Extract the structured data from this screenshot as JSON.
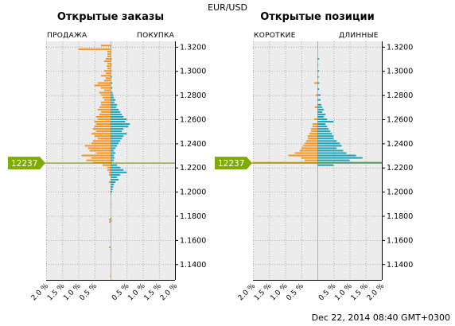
{
  "symbol": "EUR/USD",
  "timestamp": "Dec 22, 2014 08:40 GMT+0300",
  "colors": {
    "orange": "#f7941d",
    "teal": "#1ba3b7",
    "price_flag": "#7faa0a",
    "price_line": "#8a9a10",
    "plot_bg": "#ececec",
    "grid": "#999999"
  },
  "current_price_label": "12237",
  "current_price": 1.2237,
  "axis_tick_labels": [
    "1.3200",
    "1.3000",
    "1.2800",
    "1.2600",
    "1.2400",
    "1.2200",
    "1.2000",
    "1.1800",
    "1.1600",
    "1.1400"
  ],
  "x_tick_labels": [
    "2.0 %",
    "1.5 %",
    "1.0 %",
    "0.5 %",
    "0.5 %",
    "1.0 %",
    "1.5 %",
    "2.0 %"
  ],
  "panels": [
    {
      "title": "Открытые заказы",
      "left_label": "ПРОДАЖА",
      "right_label": "ПОКУПКА"
    },
    {
      "title": "Открытые позиции",
      "left_label": "КОРОТКИЕ",
      "right_label": "ДЛИННЫЕ"
    }
  ],
  "chart_data": [
    {
      "type": "bar",
      "title": "Открытые заказы",
      "orientation": "horizontal",
      "y_axis": {
        "ylim": [
          1.127,
          1.3245
        ],
        "ticks": [
          1.32,
          1.3,
          1.28,
          1.26,
          1.24,
          1.22,
          1.2,
          1.18,
          1.16,
          1.14
        ]
      },
      "x_axis": {
        "xlim": [
          -2.0,
          2.0
        ],
        "unit": "%"
      },
      "grid": true,
      "series": [
        {
          "name": "ПРОДАЖА",
          "color": "#f7941d",
          "points": [
            [
              1.321,
              0.3
            ],
            [
              1.318,
              1.0
            ],
            [
              1.316,
              0.1
            ],
            [
              1.314,
              0.1
            ],
            [
              1.312,
              0.1
            ],
            [
              1.31,
              0.15
            ],
            [
              1.308,
              0.2
            ],
            [
              1.306,
              0.1
            ],
            [
              1.304,
              0.12
            ],
            [
              1.302,
              0.1
            ],
            [
              1.3,
              0.2
            ],
            [
              1.298,
              0.15
            ],
            [
              1.296,
              0.3
            ],
            [
              1.294,
              0.15
            ],
            [
              1.292,
              0.2
            ],
            [
              1.29,
              0.4
            ],
            [
              1.288,
              0.5
            ],
            [
              1.286,
              0.3
            ],
            [
              1.284,
              0.2
            ],
            [
              1.282,
              0.35
            ],
            [
              1.28,
              0.3
            ],
            [
              1.278,
              0.25
            ],
            [
              1.276,
              0.2
            ],
            [
              1.274,
              0.3
            ],
            [
              1.272,
              0.3
            ],
            [
              1.27,
              0.35
            ],
            [
              1.268,
              0.4
            ],
            [
              1.266,
              0.3
            ],
            [
              1.264,
              0.35
            ],
            [
              1.262,
              0.45
            ],
            [
              1.26,
              0.4
            ],
            [
              1.258,
              0.5
            ],
            [
              1.256,
              0.45
            ],
            [
              1.254,
              0.5
            ],
            [
              1.252,
              0.55
            ],
            [
              1.25,
              0.45
            ],
            [
              1.248,
              0.6
            ],
            [
              1.246,
              0.5
            ],
            [
              1.244,
              0.4
            ],
            [
              1.242,
              0.55
            ],
            [
              1.24,
              0.6
            ],
            [
              1.238,
              0.8
            ],
            [
              1.236,
              0.7
            ],
            [
              1.234,
              0.65
            ],
            [
              1.232,
              0.45
            ],
            [
              1.23,
              0.9
            ],
            [
              1.228,
              0.6
            ],
            [
              1.226,
              0.75
            ],
            [
              1.224,
              0.55
            ],
            [
              1.222,
              0.25
            ],
            [
              1.22,
              0.1
            ],
            [
              1.218,
              0.1
            ],
            [
              1.216,
              0.05
            ],
            [
              1.214,
              0.05
            ],
            [
              1.208,
              0.05
            ],
            [
              1.2,
              0.02
            ],
            [
              1.177,
              0.05
            ],
            [
              1.175,
              0.05
            ],
            [
              1.154,
              0.05
            ],
            [
              1.13,
              0.02
            ]
          ]
        },
        {
          "name": "ПОКУПКА",
          "color": "#1ba3b7",
          "points": [
            [
              1.32,
              0.02
            ],
            [
              1.315,
              0.02
            ],
            [
              1.31,
              0.03
            ],
            [
              1.305,
              0.03
            ],
            [
              1.3,
              0.03
            ],
            [
              1.295,
              0.04
            ],
            [
              1.29,
              0.05
            ],
            [
              1.286,
              0.05
            ],
            [
              1.282,
              0.06
            ],
            [
              1.28,
              0.08
            ],
            [
              1.278,
              0.1
            ],
            [
              1.276,
              0.15
            ],
            [
              1.274,
              0.12
            ],
            [
              1.272,
              0.2
            ],
            [
              1.27,
              0.18
            ],
            [
              1.268,
              0.25
            ],
            [
              1.266,
              0.3
            ],
            [
              1.264,
              0.35
            ],
            [
              1.262,
              0.4
            ],
            [
              1.26,
              0.5
            ],
            [
              1.258,
              0.45
            ],
            [
              1.256,
              0.6
            ],
            [
              1.254,
              0.55
            ],
            [
              1.252,
              0.4
            ],
            [
              1.25,
              0.35
            ],
            [
              1.248,
              0.5
            ],
            [
              1.246,
              0.4
            ],
            [
              1.244,
              0.35
            ],
            [
              1.242,
              0.3
            ],
            [
              1.24,
              0.25
            ],
            [
              1.238,
              0.2
            ],
            [
              1.236,
              0.15
            ],
            [
              1.234,
              0.1
            ],
            [
              1.232,
              0.15
            ],
            [
              1.23,
              0.1
            ],
            [
              1.228,
              0.12
            ],
            [
              1.226,
              0.1
            ],
            [
              1.224,
              0.05
            ],
            [
              1.222,
              0.2
            ],
            [
              1.22,
              0.3
            ],
            [
              1.218,
              0.4
            ],
            [
              1.216,
              0.5
            ],
            [
              1.214,
              0.3
            ],
            [
              1.212,
              0.2
            ],
            [
              1.21,
              0.25
            ],
            [
              1.208,
              0.15
            ],
            [
              1.206,
              0.1
            ],
            [
              1.204,
              0.08
            ],
            [
              1.202,
              0.06
            ],
            [
              1.2,
              0.05
            ],
            [
              1.198,
              0.02
            ],
            [
              1.19,
              0.02
            ],
            [
              1.178,
              0.03
            ],
            [
              1.176,
              0.03
            ],
            [
              1.152,
              0.02
            ]
          ]
        }
      ]
    },
    {
      "type": "bar",
      "title": "Открытые позиции",
      "orientation": "horizontal",
      "y_axis": {
        "ylim": [
          1.127,
          1.3245
        ],
        "ticks": [
          1.32,
          1.3,
          1.28,
          1.26,
          1.24,
          1.22,
          1.2,
          1.18,
          1.16,
          1.14
        ]
      },
      "x_axis": {
        "xlim": [
          -2.0,
          2.0
        ],
        "unit": "%"
      },
      "grid": true,
      "series": [
        {
          "name": "КОРОТКИЕ",
          "color": "#f7941d",
          "points": [
            [
              1.29,
              0.1
            ],
            [
              1.28,
              0.05
            ],
            [
              1.27,
              0.08
            ],
            [
              1.26,
              0.1
            ],
            [
              1.256,
              0.15
            ],
            [
              1.254,
              0.15
            ],
            [
              1.252,
              0.2
            ],
            [
              1.25,
              0.2
            ],
            [
              1.248,
              0.25
            ],
            [
              1.246,
              0.3
            ],
            [
              1.244,
              0.3
            ],
            [
              1.242,
              0.35
            ],
            [
              1.24,
              0.4
            ],
            [
              1.238,
              0.45
            ],
            [
              1.236,
              0.5
            ],
            [
              1.234,
              0.55
            ],
            [
              1.232,
              0.7
            ],
            [
              1.23,
              0.9
            ],
            [
              1.228,
              0.5
            ],
            [
              1.226,
              0.4
            ],
            [
              1.224,
              2.0
            ]
          ]
        },
        {
          "name": "ДЛИННЫЕ",
          "color": "#1ba3b7",
          "points": [
            [
              1.32,
              0.02
            ],
            [
              1.31,
              0.05
            ],
            [
              1.305,
              0.03
            ],
            [
              1.3,
              0.05
            ],
            [
              1.295,
              0.04
            ],
            [
              1.29,
              0.06
            ],
            [
              1.285,
              0.05
            ],
            [
              1.28,
              0.1
            ],
            [
              1.276,
              0.1
            ],
            [
              1.272,
              0.12
            ],
            [
              1.27,
              0.15
            ],
            [
              1.268,
              0.2
            ],
            [
              1.266,
              0.15
            ],
            [
              1.264,
              0.25
            ],
            [
              1.262,
              0.2
            ],
            [
              1.26,
              0.3
            ],
            [
              1.258,
              0.5
            ],
            [
              1.256,
              0.25
            ],
            [
              1.254,
              0.3
            ],
            [
              1.252,
              0.35
            ],
            [
              1.25,
              0.4
            ],
            [
              1.248,
              0.45
            ],
            [
              1.246,
              0.5
            ],
            [
              1.244,
              0.5
            ],
            [
              1.242,
              0.6
            ],
            [
              1.24,
              0.7
            ],
            [
              1.238,
              0.75
            ],
            [
              1.236,
              0.6
            ],
            [
              1.234,
              0.8
            ],
            [
              1.232,
              0.9
            ],
            [
              1.23,
              1.2
            ],
            [
              1.228,
              1.4
            ],
            [
              1.226,
              1.0
            ],
            [
              1.224,
              2.0
            ],
            [
              1.222,
              0.5
            ]
          ]
        }
      ]
    }
  ]
}
